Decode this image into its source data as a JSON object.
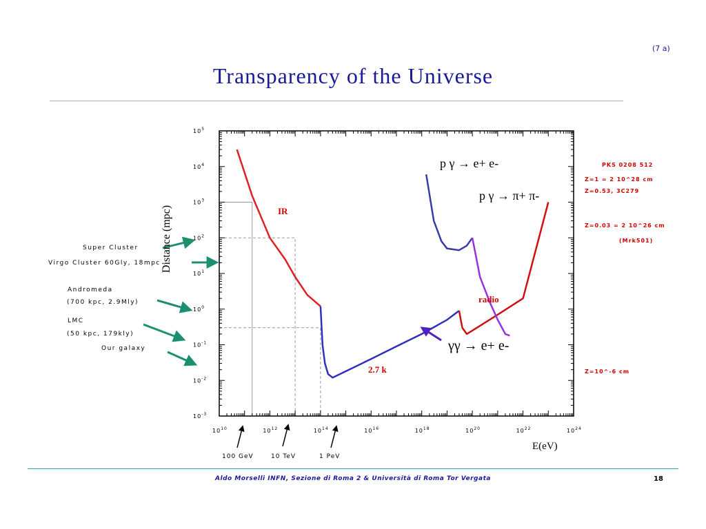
{
  "slide": {
    "title": "Transparency of the Universe",
    "tag": "(7 a)",
    "footer": "Aldo Morselli INFN, Sezione di Roma 2  &  Università di Roma Tor Vergata",
    "page_number": "18"
  },
  "landmarks": [
    {
      "label": "Super Cluster"
    },
    {
      "label": "Virgo Cluster  60Gly, 18mpc"
    },
    {
      "label": "Andromeda"
    },
    {
      "label": "(700 kpc, 2.9Mly)"
    },
    {
      "label": "LMC"
    },
    {
      "label": "(50 kpc, 179kly)"
    },
    {
      "label": "Our galaxy"
    }
  ],
  "energy_markers": [
    {
      "label": "100 GeV",
      "energy_ev": 100000000000.0
    },
    {
      "label": "10 TeV",
      "energy_ev": 10000000000000.0
    },
    {
      "label": "1 PeV",
      "energy_ev": 1000000000000000.0
    }
  ],
  "red_notes": [
    "PKS 0208 512",
    "Z=1 = 2 10^28 cm",
    "Z=0.53, 3C279",
    "Z=0.03 = 2 10^26 cm",
    "(Mrk501)",
    "Z=10^-6 cm"
  ],
  "chart_data": {
    "type": "line",
    "xlabel": "E(eV)",
    "ylabel": "Distance (mpc)",
    "x_scale": "log",
    "y_scale": "log",
    "xlim": [
      10000000000.0,
      1e+24
    ],
    "ylim": [
      0.001,
      100000.0
    ],
    "x_ticks": [
      "10^10",
      "10^12",
      "10^14",
      "10^16",
      "10^18",
      "10^20",
      "10^22",
      "10^24"
    ],
    "y_ticks": [
      "10^5",
      "10^4",
      "10^3",
      "10^2",
      "10^1",
      "10^0",
      "10^-1",
      "10^-2",
      "10^-3"
    ],
    "series": [
      {
        "name": "IR",
        "color": "#e02020",
        "x": [
          50000000000.0,
          200000000000.0,
          1000000000000.0,
          4000000000000.0,
          10000000000000.0,
          30000000000000.0,
          100000000000000.0
        ],
        "y": [
          30000,
          1500,
          100,
          25,
          8,
          2.5,
          1.2
        ]
      },
      {
        "name": "2.7 k",
        "color": "#3030c0",
        "x": [
          100000000000000.0,
          120000000000000.0,
          150000000000000.0,
          200000000000000.0,
          300000000000000.0,
          1000000000000000.0,
          1e+16,
          1e+17,
          1e+18,
          1e+19,
          3e+19
        ],
        "y": [
          1.2,
          0.1,
          0.03,
          0.015,
          0.012,
          0.018,
          0.04,
          0.09,
          0.2,
          0.5,
          0.9
        ]
      },
      {
        "name": "radio",
        "color": "#d01010",
        "x": [
          3e+19,
          4e+19,
          6e+19,
          1e+20,
          1e+21,
          1e+22,
          1e+23
        ],
        "y": [
          0.9,
          0.3,
          0.2,
          0.25,
          0.7,
          2.0,
          1000
        ]
      },
      {
        "name": "p γ → e+ e-",
        "color": "#3a3aa8",
        "x": [
          1.5e+18,
          3e+18,
          6e+18,
          1e+19,
          3e+19,
          6e+19,
          1e+20
        ],
        "y": [
          6000,
          300,
          80,
          50,
          45,
          60,
          100
        ]
      },
      {
        "name": "p γ → π+ π-",
        "color": "#9a30e0",
        "x": [
          1e+20,
          2e+20,
          5e+20,
          1e+21,
          2e+21,
          3e+21
        ],
        "y": [
          100,
          8,
          1.5,
          0.5,
          0.2,
          0.18
        ]
      }
    ],
    "annotations": [
      {
        "text": "IR",
        "color": "#d00000"
      },
      {
        "text": "2.7 k",
        "color": "#d00000"
      },
      {
        "text": "radio",
        "color": "#d00000"
      },
      {
        "text": "γγ → e+ e-",
        "color": "#000000"
      },
      {
        "text": "p γ → e+ e-",
        "color": "#000000"
      },
      {
        "text": "p γ → π+ π-",
        "color": "#000000"
      }
    ],
    "guide_lines": [
      {
        "x": 200000000000.0,
        "y": 1000
      },
      {
        "x": 10000000000000.0,
        "y": 100
      },
      {
        "x": 100000000000000.0,
        "y": 0.3
      }
    ]
  }
}
